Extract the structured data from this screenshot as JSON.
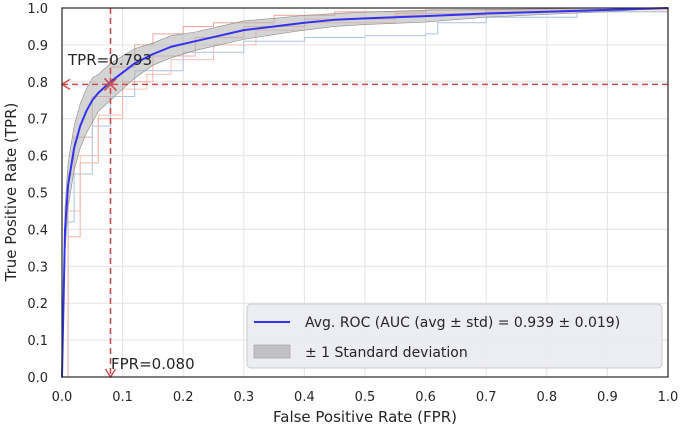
{
  "chart_data": {
    "type": "line",
    "title": "",
    "xlabel": "False Positive Rate (FPR)",
    "ylabel": "True Positive Rate (TPR)",
    "xlim": [
      0,
      1
    ],
    "ylim": [
      0,
      1
    ],
    "grid": true,
    "x_ticks": [
      "0.0",
      "0.1",
      "0.2",
      "0.3",
      "0.4",
      "0.5",
      "0.6",
      "0.7",
      "0.8",
      "0.9",
      "1.0"
    ],
    "y_ticks": [
      "0.0",
      "0.1",
      "0.2",
      "0.3",
      "0.4",
      "0.5",
      "0.6",
      "0.7",
      "0.8",
      "0.9",
      "1.0"
    ],
    "legend_position": "lower-right",
    "series": [
      {
        "name": "Avg. ROC (AUC (avg ± std) = 0.939 ± 0.019)",
        "color": "#3333ee",
        "x": [
          0,
          0.005,
          0.01,
          0.02,
          0.03,
          0.04,
          0.05,
          0.06,
          0.08,
          0.1,
          0.12,
          0.15,
          0.18,
          0.22,
          0.26,
          0.3,
          0.35,
          0.4,
          0.45,
          0.5,
          0.6,
          0.7,
          0.8,
          0.9,
          1.0
        ],
        "y": [
          0,
          0.4,
          0.52,
          0.62,
          0.68,
          0.72,
          0.75,
          0.77,
          0.8,
          0.825,
          0.85,
          0.875,
          0.895,
          0.91,
          0.925,
          0.94,
          0.95,
          0.96,
          0.968,
          0.972,
          0.978,
          0.985,
          0.99,
          0.995,
          1.0
        ]
      },
      {
        "name": "± 1 Standard deviation",
        "color": "#b0b0b0",
        "x": [
          0,
          0.005,
          0.01,
          0.02,
          0.03,
          0.04,
          0.05,
          0.06,
          0.08,
          0.1,
          0.12,
          0.15,
          0.18,
          0.22,
          0.26,
          0.3,
          0.35,
          0.4,
          0.45,
          0.5,
          0.6,
          0.7,
          0.8,
          0.9,
          1.0
        ],
        "lower": [
          0,
          0.34,
          0.46,
          0.56,
          0.62,
          0.66,
          0.69,
          0.72,
          0.75,
          0.78,
          0.81,
          0.845,
          0.865,
          0.885,
          0.9,
          0.915,
          0.928,
          0.94,
          0.95,
          0.955,
          0.962,
          0.975,
          0.983,
          0.99,
          1.0
        ],
        "upper": [
          0,
          0.46,
          0.58,
          0.68,
          0.74,
          0.78,
          0.81,
          0.82,
          0.85,
          0.87,
          0.89,
          0.905,
          0.925,
          0.935,
          0.95,
          0.965,
          0.972,
          0.98,
          0.985,
          0.989,
          0.994,
          0.996,
          0.998,
          1.0,
          1.0
        ]
      }
    ],
    "fold_curves": [
      {
        "color": "#f4a79a",
        "x": [
          0,
          0.01,
          0.02,
          0.05,
          0.08,
          0.12,
          0.15,
          0.2,
          0.25,
          0.35,
          0.45,
          0.6,
          0.8,
          1.0
        ],
        "y": [
          0,
          0.55,
          0.65,
          0.76,
          0.84,
          0.9,
          0.93,
          0.95,
          0.96,
          0.98,
          0.99,
          0.995,
          1.0,
          1.0
        ]
      },
      {
        "color": "#f9c0b5",
        "x": [
          0,
          0.01,
          0.03,
          0.06,
          0.1,
          0.14,
          0.18,
          0.25,
          0.32,
          0.4,
          0.55,
          0.7,
          1.0
        ],
        "y": [
          0,
          0.45,
          0.6,
          0.71,
          0.78,
          0.82,
          0.86,
          0.9,
          0.94,
          0.96,
          0.98,
          0.99,
          1.0
        ]
      },
      {
        "color": "#a8c4e6",
        "x": [
          0,
          0.01,
          0.02,
          0.05,
          0.08,
          0.12,
          0.2,
          0.3,
          0.4,
          0.5,
          0.6,
          0.62,
          0.7,
          0.85,
          1.0
        ],
        "y": [
          0,
          0.42,
          0.55,
          0.68,
          0.76,
          0.83,
          0.88,
          0.91,
          0.92,
          0.925,
          0.93,
          0.96,
          0.975,
          0.99,
          1.0
        ]
      },
      {
        "color": "#f6b3a6",
        "x": [
          0,
          0.01,
          0.03,
          0.06,
          0.1,
          0.15,
          0.22,
          0.3,
          0.4,
          0.55,
          0.7,
          1.0
        ],
        "y": [
          0,
          0.38,
          0.58,
          0.7,
          0.8,
          0.87,
          0.92,
          0.95,
          0.97,
          0.985,
          0.995,
          1.0
        ]
      }
    ],
    "operating_point": {
      "fpr": 0.08,
      "tpr": 0.793,
      "color": "#cc4c4c"
    },
    "annotations": {
      "tpr_label": "TPR=0.793",
      "fpr_label": "FPR=0.080"
    }
  }
}
